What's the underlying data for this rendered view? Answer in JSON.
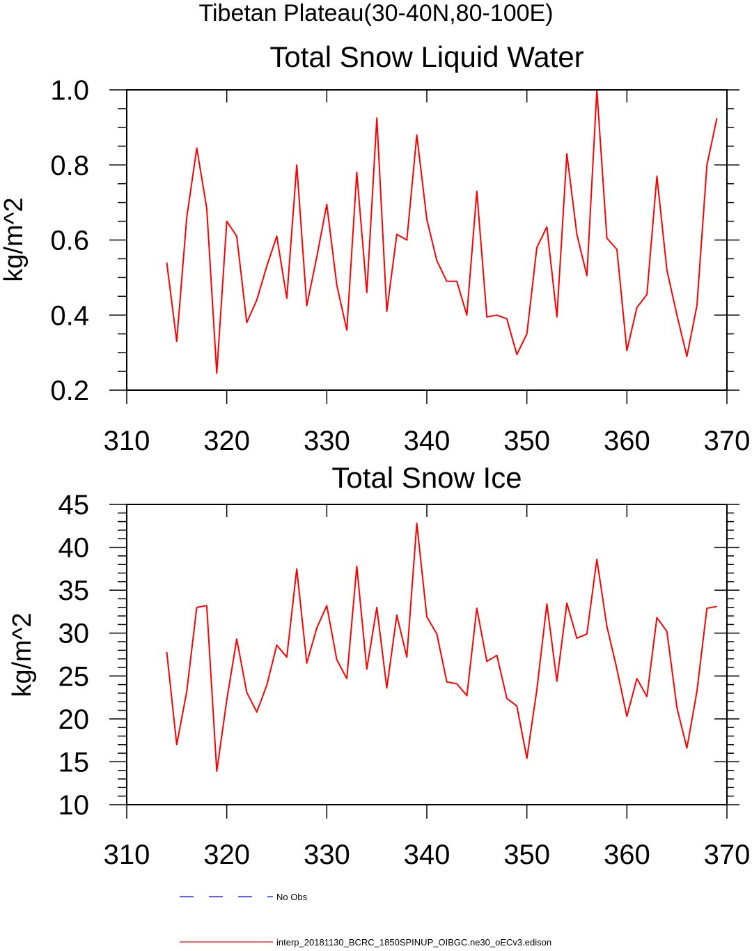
{
  "page_title": "Tibetan Plateau(30-40N,80-100E)",
  "colors": {
    "model_line": "#ff0000",
    "obs_line": "#0000ff",
    "axis": "#000000"
  },
  "legend": [
    {
      "label": "No Obs",
      "style": "dashed",
      "color": "#0000ff"
    },
    {
      "label": "interp_20181130_BCRC_1850SPINUP_OIBGC.ne30_oECv3.edison",
      "style": "solid",
      "color": "#ff0000"
    }
  ],
  "chart_data": [
    {
      "type": "line",
      "title": "Total Snow Liquid Water",
      "xlabel": "",
      "ylabel": "kg/m^2",
      "xlim": [
        310,
        370
      ],
      "ylim": [
        0.2,
        1.0
      ],
      "xticks": [
        310,
        320,
        330,
        340,
        350,
        360,
        370
      ],
      "xtick_labels": [
        "310",
        "320",
        "330",
        "340",
        "350",
        "360",
        "370"
      ],
      "yticks": [
        0.2,
        0.4,
        0.6,
        0.8,
        1.0
      ],
      "ytick_labels": [
        "0.2",
        "0.4",
        "0.6",
        "0.8",
        "1.0"
      ],
      "yminor_step": 0.05,
      "x": [
        314,
        315,
        316,
        317,
        318,
        319,
        320,
        321,
        322,
        323,
        324,
        325,
        326,
        327,
        328,
        329,
        330,
        331,
        332,
        333,
        334,
        335,
        336,
        337,
        338,
        339,
        340,
        341,
        342,
        343,
        344,
        345,
        346,
        347,
        348,
        349,
        350,
        351,
        352,
        353,
        354,
        355,
        356,
        357,
        358,
        359,
        360,
        361,
        362,
        363,
        364,
        365,
        366,
        367,
        368,
        369
      ],
      "series": [
        {
          "name": "interp_20181130_BCRC_1850SPINUP_OIBGC.ne30_oECv3.edison",
          "values": [
            0.54,
            0.33,
            0.66,
            0.845,
            0.685,
            0.245,
            0.65,
            0.61,
            0.38,
            0.44,
            0.53,
            0.61,
            0.445,
            0.8,
            0.425,
            0.555,
            0.695,
            0.48,
            0.36,
            0.78,
            0.46,
            0.925,
            0.41,
            0.615,
            0.6,
            0.88,
            0.655,
            0.545,
            0.49,
            0.49,
            0.4,
            0.73,
            0.395,
            0.4,
            0.39,
            0.295,
            0.35,
            0.58,
            0.635,
            0.395,
            0.83,
            0.615,
            0.505,
            1.0,
            0.605,
            0.575,
            0.305,
            0.42,
            0.455,
            0.77,
            0.52,
            0.4,
            0.29,
            0.425,
            0.8,
            0.925
          ]
        }
      ]
    },
    {
      "type": "line",
      "title": "Total Snow Ice",
      "xlabel": "",
      "ylabel": "kg/m^2",
      "xlim": [
        310,
        370
      ],
      "ylim": [
        10,
        45
      ],
      "xticks": [
        310,
        320,
        330,
        340,
        350,
        360,
        370
      ],
      "xtick_labels": [
        "310",
        "320",
        "330",
        "340",
        "350",
        "360",
        "370"
      ],
      "yticks": [
        10,
        15,
        20,
        25,
        30,
        35,
        40,
        45
      ],
      "ytick_labels": [
        "10",
        "15",
        "20",
        "25",
        "30",
        "35",
        "40",
        "45"
      ],
      "yminor_step": 1,
      "x": [
        314,
        315,
        316,
        317,
        318,
        319,
        320,
        321,
        322,
        323,
        324,
        325,
        326,
        327,
        328,
        329,
        330,
        331,
        332,
        333,
        334,
        335,
        336,
        337,
        338,
        339,
        340,
        341,
        342,
        343,
        344,
        345,
        346,
        347,
        348,
        349,
        350,
        351,
        352,
        353,
        354,
        355,
        356,
        357,
        358,
        359,
        360,
        361,
        362,
        363,
        364,
        365,
        366,
        367,
        368,
        369
      ],
      "series": [
        {
          "name": "interp_20181130_BCRC_1850SPINUP_OIBGC.ne30_oECv3.edison",
          "values": [
            27.8,
            17.0,
            23.2,
            33.0,
            33.2,
            13.9,
            22.2,
            29.3,
            23.1,
            20.8,
            23.9,
            28.6,
            27.2,
            37.5,
            26.5,
            30.6,
            33.2,
            26.9,
            24.7,
            37.8,
            25.8,
            33.0,
            23.6,
            32.1,
            27.2,
            42.8,
            31.9,
            29.9,
            24.3,
            24.1,
            22.7,
            32.9,
            26.7,
            27.4,
            22.4,
            21.5,
            15.4,
            23.4,
            33.4,
            24.4,
            33.5,
            29.4,
            29.9,
            38.6,
            30.8,
            25.8,
            20.3,
            24.7,
            22.6,
            31.8,
            30.2,
            21.3,
            16.6,
            23.2,
            32.9,
            33.1
          ]
        }
      ]
    }
  ]
}
